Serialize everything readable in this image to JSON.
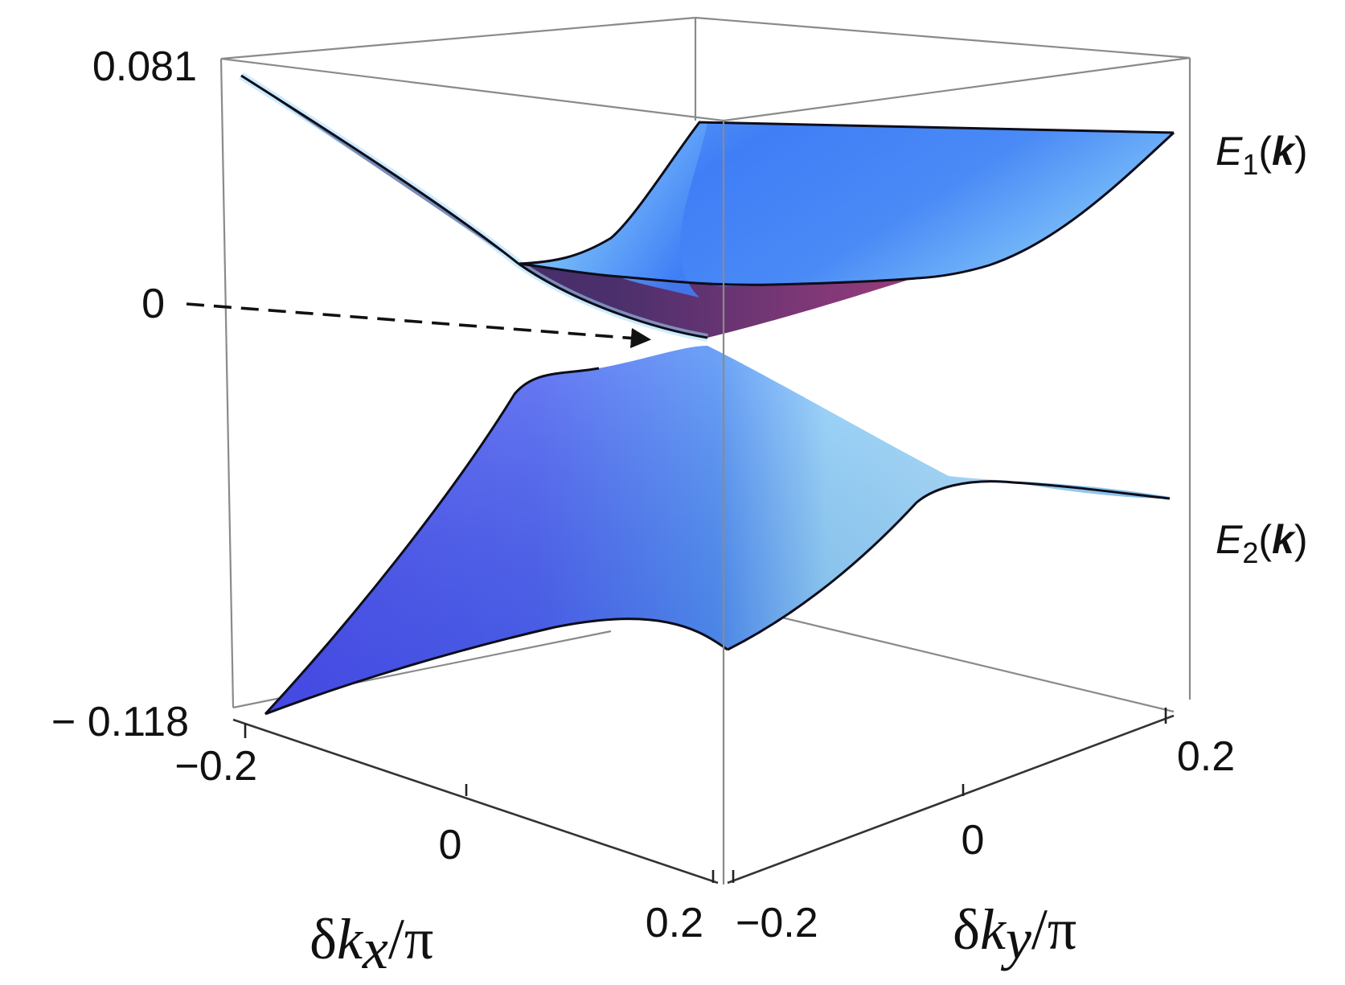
{
  "chart_data": {
    "type": "surface",
    "title": "",
    "zlim": [
      -0.118,
      0.081
    ],
    "z_ticks": [
      "0.081",
      "0",
      "− 0.118"
    ],
    "x_axis": {
      "label_prefix": "δ",
      "label_var": "k",
      "label_sub": "x",
      "label_suffix": "/π",
      "range": [
        -0.2,
        0.2
      ],
      "ticks": [
        "−0.2",
        "0",
        "0.2"
      ]
    },
    "y_axis": {
      "label_prefix": "δ",
      "label_var": "k",
      "label_sub": "y",
      "label_suffix": "/π",
      "range": [
        -0.2,
        0.2
      ],
      "ticks": [
        "−0.2",
        "0",
        "0.2"
      ]
    },
    "series": [
      {
        "name_main": "E",
        "name_sub": "1",
        "name_open": "(",
        "name_var": "k",
        "name_close": ")",
        "band": "upper",
        "corner_values": {
          "kx-0.2_ky-0.2": 0.066,
          "kx0.2_ky-0.2": 0.048,
          "kx0.2_ky0.2": 0.048,
          "kx-0.2_ky0.2": 0.048,
          "kx0_ky0": 0.0
        }
      },
      {
        "name_main": "E",
        "name_sub": "2",
        "name_open": "(",
        "name_var": "k",
        "name_close": ")",
        "band": "lower",
        "corner_values": {
          "kx-0.2_ky-0.2": -0.118,
          "kx0.2_ky-0.2": -0.09,
          "kx0.2_ky0.2": -0.05,
          "kx-0.2_ky0.2": -0.05,
          "kx0_ky0": -0.003
        }
      }
    ],
    "annotation": {
      "type": "dashed-arrow",
      "points_to": "degeneracy point near z = 0"
    },
    "colors": {
      "surface_dark": "#4a52f0",
      "surface_mid": "#4f8ff7",
      "surface_light": "#a8dcfb",
      "surface_under": "#4a2e6e",
      "surface_under_magenta": "#8a3a78"
    }
  }
}
